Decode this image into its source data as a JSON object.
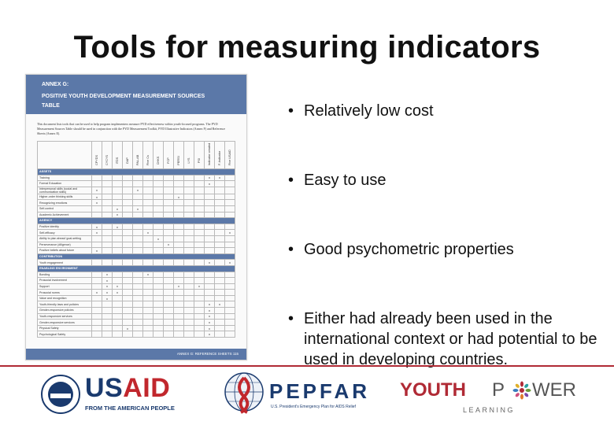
{
  "slide": {
    "title": "Tools for measuring indicators"
  },
  "document": {
    "header_line1": "ANNEX G:",
    "header_line2": "POSITIVE YOUTH DEVELOPMENT MEASUREMENT SOURCES",
    "header_line3": "TABLE",
    "intro": "This document lists tools that can be used to help program implementers measure PYD effectiveness within youth-focused programs. The PYD Measurement Sources Table should be used in conjunction with the PYD Measurement Toolkit, PYD Illustrative Indicators (Annex F) and Reference Sheets (Annex E).",
    "columns": [
      "CPYDS",
      "CYCYS",
      "ITDS",
      "DAP",
      "PAL-AB",
      "Five Cs",
      "CHKS",
      "FCP",
      "PERSI",
      "LYS",
      "PSI",
      "Indicator created",
      "F-Indicator",
      "Five USAID"
    ],
    "sections": [
      {
        "name": "ASSETS",
        "rows": [
          {
            "label": "Training",
            "marks": [
              12,
              13
            ]
          },
          {
            "label": "Formal Education",
            "marks": [
              12
            ]
          },
          {
            "label": "Interpersonal skills (social and communication skills)",
            "marks": [
              1,
              5
            ]
          },
          {
            "label": "Higher-order thinking skills",
            "marks": [
              1,
              9
            ]
          },
          {
            "label": "Recognizing emotions",
            "marks": [
              1
            ]
          },
          {
            "label": "Self-control",
            "marks": [
              3,
              5
            ]
          },
          {
            "label": "Academic Achievement",
            "marks": [
              3
            ]
          }
        ]
      },
      {
        "name": "AGENCY",
        "rows": [
          {
            "label": "Positive identity",
            "marks": [
              1,
              3
            ]
          },
          {
            "label": "Self-efficacy",
            "marks": [
              1,
              6,
              14
            ]
          },
          {
            "label": "Ability to plan ahead/ goal-setting",
            "marks": [
              7
            ]
          },
          {
            "label": "Perseverance (diligence)",
            "marks": [
              8
            ]
          },
          {
            "label": "Positive beliefs about future",
            "marks": [
              1
            ]
          }
        ]
      },
      {
        "name": "CONTRIBUTION",
        "rows": [
          {
            "label": "Youth engagement",
            "marks": [
              12,
              14
            ]
          }
        ]
      },
      {
        "name": "ENABLING ENVIRONMENT",
        "rows": [
          {
            "label": "Bonding",
            "marks": [
              2,
              6
            ]
          },
          {
            "label": "Prosocial involvement",
            "marks": [
              2
            ]
          },
          {
            "label": "Support",
            "marks": [
              2,
              3,
              9,
              11
            ]
          },
          {
            "label": "Prosocial norms",
            "marks": [
              1,
              2,
              3
            ]
          },
          {
            "label": "Value and recognition",
            "marks": [
              2
            ]
          },
          {
            "label": "Youth-friendly laws and policies",
            "marks": [
              12,
              13
            ]
          },
          {
            "label": "Gender-responsive policies",
            "marks": [
              12
            ]
          },
          {
            "label": "Youth-responsive services",
            "marks": [
              12
            ]
          },
          {
            "label": "Gender-responsive services",
            "marks": [
              12
            ]
          },
          {
            "label": "Physical Safety",
            "marks": [
              4,
              12
            ]
          },
          {
            "label": "Psychological Safety",
            "marks": [
              12
            ]
          }
        ]
      }
    ],
    "mark_symbol": "x",
    "footer": "ANNEX G: REFERENCE SHEETS   115"
  },
  "bullets": [
    "Relatively low  cost",
    "Easy to use",
    "Good psychometric properties",
    "Either had already been used in the international context or had potential to be used in developing countries."
  ],
  "bullet_symbol": "•",
  "logos": {
    "usaid": {
      "word_us": "US",
      "word_aid": "AID",
      "tagline": "FROM THE AMERICAN PEOPLE"
    },
    "pepfar": {
      "word": "PEPFAR",
      "tagline": "U.S. President's Emergency Plan for AIDS Relief"
    },
    "youthpower": {
      "word_youth": "YOUTH",
      "word_p": "P",
      "word_wer": "WER",
      "tagline": "LEARNING"
    }
  },
  "colors": {
    "doc_header": "#5b78a8",
    "usaid_blue": "#1a3a6e",
    "usaid_red": "#c1272d",
    "youthpower_red": "#b02a35",
    "separator": "#b02a35"
  }
}
